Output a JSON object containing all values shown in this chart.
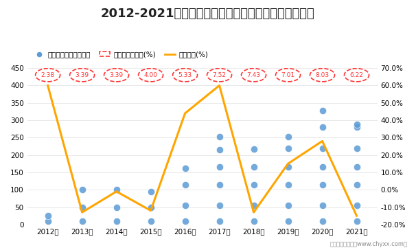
{
  "years": [
    "2012年",
    "2013年",
    "2014年",
    "2015年",
    "2016年",
    "2017年",
    "2018年",
    "2019年",
    "2020年",
    "2021年"
  ],
  "title": "2012-2021年河南省县城市政设施实际到位资金统计图",
  "proportion_labels": [
    "2.38",
    "3.39",
    "3.39",
    "4.00",
    "5.33",
    "7.52",
    "7.43",
    "7.01",
    "8.03",
    "6.22"
  ],
  "yoy_growth": [
    60.0,
    -13.0,
    -1.0,
    -12.0,
    44.0,
    60.0,
    -13.0,
    15.0,
    28.0,
    -15.0
  ],
  "left_ylim": [
    0,
    450
  ],
  "right_ylim": [
    -20.0,
    70.0
  ],
  "left_yticks": [
    0,
    50,
    100,
    150,
    200,
    250,
    300,
    350,
    400,
    450
  ],
  "right_yticks": [
    -20.0,
    -10.0,
    0.0,
    10.0,
    20.0,
    30.0,
    40.0,
    50.0,
    60.0,
    70.0
  ],
  "scatter_dot_values": [
    [
      10,
      25
    ],
    [
      10,
      50,
      100
    ],
    [
      10,
      50,
      100
    ],
    [
      10,
      50,
      95
    ],
    [
      10,
      55,
      115,
      162
    ],
    [
      10,
      55,
      115,
      165,
      215,
      253
    ],
    [
      10,
      55,
      115,
      165,
      218
    ],
    [
      10,
      55,
      115,
      165,
      220,
      253
    ],
    [
      10,
      55,
      115,
      165,
      220,
      280,
      328
    ],
    [
      10,
      55,
      115,
      165,
      220,
      280,
      288
    ]
  ],
  "line_color": "#FFA500",
  "scatter_color": "#5B9BD5",
  "proportion_circle_color": "#FF3333",
  "bg_color": "#FFFFFF",
  "legend_items": [
    "实际到位资金（亿元）",
    "占全国县城比重(%)",
    "同比增幅(%)"
  ],
  "footer": "制图：智研咨询（www.chyxx.com）"
}
